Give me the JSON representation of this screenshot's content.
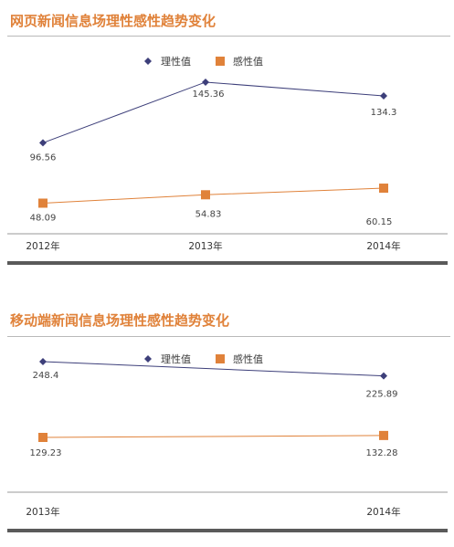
{
  "chart_data": [
    {
      "type": "line",
      "title": "网页新闻信息场理性感性趋势变化",
      "categories": [
        "2012年",
        "2013年",
        "2014年"
      ],
      "series": [
        {
          "name": "理性值",
          "values": [
            96.56,
            145.36,
            134.3
          ],
          "labels": [
            "96.56",
            "145.36",
            "134.3"
          ],
          "color": "#3d3f7a",
          "marker": "diamond"
        },
        {
          "name": "感性值",
          "values": [
            48.09,
            54.83,
            60.15
          ],
          "labels": [
            "48.09",
            "54.83",
            "60.15"
          ],
          "color": "#e0823a",
          "marker": "square"
        }
      ],
      "legend": "top-center",
      "ylim": [
        0,
        160
      ],
      "grid": false
    },
    {
      "type": "line",
      "title": "移动端新闻信息场理性感性趋势变化",
      "categories": [
        "2013年",
        "2014年"
      ],
      "series": [
        {
          "name": "理性值",
          "values": [
            248.4,
            225.89
          ],
          "labels": [
            "248.4",
            "225.89"
          ],
          "color": "#3d3f7a",
          "marker": "diamond"
        },
        {
          "name": "感性值",
          "values": [
            129.23,
            132.28
          ],
          "labels": [
            "129.23",
            "132.28"
          ],
          "color": "#e0823a",
          "marker": "square"
        }
      ],
      "legend": "top-center",
      "ylim": [
        0,
        280
      ],
      "grid": false
    }
  ]
}
